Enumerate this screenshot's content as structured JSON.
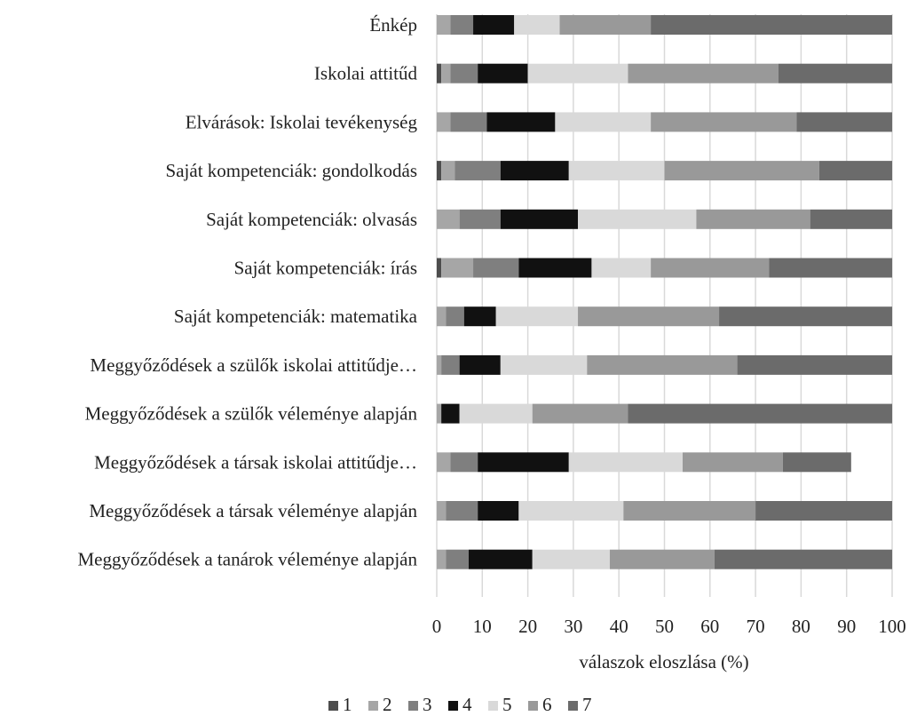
{
  "chart_data": {
    "type": "bar",
    "orientation": "horizontal",
    "stacked": true,
    "title": "",
    "xlabel": "válaszok eloszlása (%)",
    "ylabel": "",
    "xlim": [
      0,
      100
    ],
    "x_ticks": [
      "0",
      "10",
      "20",
      "30",
      "40",
      "50",
      "60",
      "70",
      "80",
      "90",
      "100"
    ],
    "grid": "vertical",
    "legend_position": "bottom",
    "categories": [
      "Énkép",
      "Iskolai attitűd",
      "Elvárások: Iskolai tevékenység",
      "Saját kompetenciák: gondolkodás",
      "Saját kompetenciák: olvasás",
      "Saját kompetenciák: írás",
      "Saját kompetenciák: matematika",
      "Meggyőződések a szülők iskolai attitűdje…",
      "Meggyőződések a szülők véleménye alapján",
      "Meggyőződések a társak iskolai attitűdje…",
      "Meggyőződések a társak véleménye alapján",
      "Meggyőződések a tanárok véleménye alapján"
    ],
    "series": [
      {
        "name": "1",
        "color": "#4d4d4d",
        "values": [
          0,
          1,
          0,
          1,
          0,
          1,
          0,
          0,
          0,
          0,
          0,
          0
        ]
      },
      {
        "name": "2",
        "color": "#a6a6a6",
        "values": [
          3,
          2,
          3,
          3,
          5,
          7,
          2,
          1,
          1,
          3,
          2,
          2
        ]
      },
      {
        "name": "3",
        "color": "#7f7f7f",
        "values": [
          5,
          6,
          8,
          10,
          9,
          10,
          4,
          4,
          0,
          6,
          7,
          5
        ]
      },
      {
        "name": "4",
        "color": "#111111",
        "values": [
          9,
          11,
          15,
          15,
          17,
          16,
          7,
          9,
          4,
          20,
          9,
          14
        ]
      },
      {
        "name": "5",
        "color": "#d9d9d9",
        "values": [
          10,
          22,
          21,
          21,
          26,
          13,
          18,
          19,
          16,
          25,
          23,
          17
        ]
      },
      {
        "name": "6",
        "color": "#999999",
        "values": [
          20,
          33,
          32,
          34,
          25,
          26,
          31,
          33,
          21,
          22,
          29,
          23
        ]
      },
      {
        "name": "7",
        "color": "#6b6b6b",
        "values": [
          53,
          25,
          21,
          16,
          18,
          27,
          38,
          34,
          58,
          15,
          30,
          39
        ]
      }
    ]
  }
}
